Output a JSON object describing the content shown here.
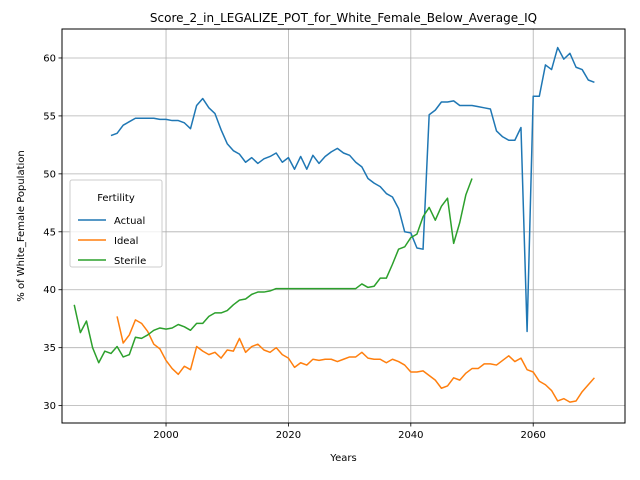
{
  "chart_data": {
    "type": "line",
    "title": "Score_2_in_LEGALIZE_POT_for_White_Female_Below_Average_IQ",
    "xlabel": "Years",
    "ylabel": "% of White_Female Population",
    "xlim": [
      1983,
      2075
    ],
    "ylim": [
      28.5,
      62.5
    ],
    "x_ticks": [
      2000,
      2020,
      2040,
      2060
    ],
    "y_ticks": [
      30,
      35,
      40,
      45,
      50,
      55,
      60
    ],
    "grid": true,
    "legend": {
      "title": "Fertility",
      "placement": "center-left"
    },
    "series": [
      {
        "name": "Actual",
        "color": "#1f77b4",
        "points": [
          [
            1991,
            53.3
          ],
          [
            1992,
            53.5
          ],
          [
            1993,
            54.2
          ],
          [
            1994,
            54.5
          ],
          [
            1995,
            54.8
          ],
          [
            1996,
            54.8
          ],
          [
            1997,
            54.8
          ],
          [
            1998,
            54.8
          ],
          [
            1999,
            54.7
          ],
          [
            2000,
            54.7
          ],
          [
            2001,
            54.6
          ],
          [
            2002,
            54.6
          ],
          [
            2003,
            54.4
          ],
          [
            2004,
            53.9
          ],
          [
            2005,
            55.9
          ],
          [
            2006,
            56.5
          ],
          [
            2007,
            55.7
          ],
          [
            2008,
            55.2
          ],
          [
            2009,
            53.8
          ],
          [
            2010,
            52.6
          ],
          [
            2011,
            52.0
          ],
          [
            2012,
            51.7
          ],
          [
            2013,
            51.0
          ],
          [
            2014,
            51.4
          ],
          [
            2015,
            50.9
          ],
          [
            2016,
            51.3
          ],
          [
            2017,
            51.5
          ],
          [
            2018,
            51.8
          ],
          [
            2019,
            51.0
          ],
          [
            2020,
            51.4
          ],
          [
            2021,
            50.4
          ],
          [
            2022,
            51.5
          ],
          [
            2023,
            50.4
          ],
          [
            2024,
            51.6
          ],
          [
            2025,
            50.9
          ],
          [
            2026,
            51.5
          ],
          [
            2027,
            51.9
          ],
          [
            2028,
            52.2
          ],
          [
            2029,
            51.8
          ],
          [
            2030,
            51.6
          ],
          [
            2031,
            51.0
          ],
          [
            2032,
            50.6
          ],
          [
            2033,
            49.6
          ],
          [
            2034,
            49.2
          ],
          [
            2035,
            48.9
          ],
          [
            2036,
            48.3
          ],
          [
            2037,
            48.0
          ],
          [
            2038,
            47.0
          ],
          [
            2039,
            45.0
          ],
          [
            2040,
            44.9
          ],
          [
            2041,
            43.6
          ],
          [
            2042,
            43.5
          ],
          [
            2043,
            55.1
          ],
          [
            2044,
            55.5
          ],
          [
            2045,
            56.2
          ],
          [
            2046,
            56.2
          ],
          [
            2047,
            56.3
          ],
          [
            2048,
            55.9
          ],
          [
            2049,
            55.9
          ],
          [
            2050,
            55.9
          ],
          [
            2051,
            55.8
          ],
          [
            2052,
            55.7
          ],
          [
            2053,
            55.6
          ],
          [
            2054,
            53.7
          ],
          [
            2055,
            53.2
          ],
          [
            2056,
            52.9
          ],
          [
            2057,
            52.9
          ],
          [
            2058,
            54.0
          ],
          [
            2059,
            36.4
          ],
          [
            2060,
            56.7
          ],
          [
            2061,
            56.7
          ],
          [
            2062,
            59.4
          ],
          [
            2063,
            59.0
          ],
          [
            2064,
            60.9
          ],
          [
            2065,
            59.9
          ],
          [
            2066,
            60.4
          ],
          [
            2067,
            59.2
          ],
          [
            2068,
            59.0
          ],
          [
            2069,
            58.1
          ],
          [
            2070,
            57.9
          ]
        ]
      },
      {
        "name": "Ideal",
        "color": "#ff7f0e",
        "points": [
          [
            1992,
            37.7
          ],
          [
            1993,
            35.4
          ],
          [
            1994,
            36.1
          ],
          [
            1995,
            37.4
          ],
          [
            1996,
            37.1
          ],
          [
            1997,
            36.4
          ],
          [
            1998,
            35.3
          ],
          [
            1999,
            34.9
          ],
          [
            2000,
            33.9
          ],
          [
            2001,
            33.2
          ],
          [
            2002,
            32.7
          ],
          [
            2003,
            33.4
          ],
          [
            2004,
            33.1
          ],
          [
            2005,
            35.1
          ],
          [
            2006,
            34.7
          ],
          [
            2007,
            34.4
          ],
          [
            2008,
            34.6
          ],
          [
            2009,
            34.1
          ],
          [
            2010,
            34.8
          ],
          [
            2011,
            34.7
          ],
          [
            2012,
            35.8
          ],
          [
            2013,
            34.6
          ],
          [
            2014,
            35.1
          ],
          [
            2015,
            35.3
          ],
          [
            2016,
            34.8
          ],
          [
            2017,
            34.6
          ],
          [
            2018,
            35.0
          ],
          [
            2019,
            34.4
          ],
          [
            2020,
            34.1
          ],
          [
            2021,
            33.3
          ],
          [
            2022,
            33.7
          ],
          [
            2023,
            33.5
          ],
          [
            2024,
            34.0
          ],
          [
            2025,
            33.9
          ],
          [
            2026,
            34.0
          ],
          [
            2027,
            34.0
          ],
          [
            2028,
            33.8
          ],
          [
            2029,
            34.0
          ],
          [
            2030,
            34.2
          ],
          [
            2031,
            34.2
          ],
          [
            2032,
            34.6
          ],
          [
            2033,
            34.1
          ],
          [
            2034,
            34.0
          ],
          [
            2035,
            34.0
          ],
          [
            2036,
            33.7
          ],
          [
            2037,
            34.0
          ],
          [
            2038,
            33.8
          ],
          [
            2039,
            33.5
          ],
          [
            2040,
            32.9
          ],
          [
            2041,
            32.9
          ],
          [
            2042,
            33.0
          ],
          [
            2043,
            32.6
          ],
          [
            2044,
            32.2
          ],
          [
            2045,
            31.5
          ],
          [
            2046,
            31.7
          ],
          [
            2047,
            32.4
          ],
          [
            2048,
            32.2
          ],
          [
            2049,
            32.8
          ],
          [
            2050,
            33.2
          ],
          [
            2051,
            33.2
          ],
          [
            2052,
            33.6
          ],
          [
            2053,
            33.6
          ],
          [
            2054,
            33.5
          ],
          [
            2055,
            33.9
          ],
          [
            2056,
            34.3
          ],
          [
            2057,
            33.8
          ],
          [
            2058,
            34.1
          ],
          [
            2059,
            33.1
          ],
          [
            2060,
            32.9
          ],
          [
            2061,
            32.1
          ],
          [
            2062,
            31.8
          ],
          [
            2063,
            31.3
          ],
          [
            2064,
            30.4
          ],
          [
            2065,
            30.6
          ],
          [
            2066,
            30.3
          ],
          [
            2067,
            30.4
          ],
          [
            2068,
            31.2
          ],
          [
            2069,
            31.8
          ],
          [
            2070,
            32.4
          ]
        ]
      },
      {
        "name": "Sterile",
        "color": "#2ca02c",
        "points": [
          [
            1985,
            38.7
          ],
          [
            1986,
            36.3
          ],
          [
            1987,
            37.3
          ],
          [
            1988,
            35.0
          ],
          [
            1989,
            33.7
          ],
          [
            1990,
            34.7
          ],
          [
            1991,
            34.5
          ],
          [
            1992,
            35.1
          ],
          [
            1993,
            34.2
          ],
          [
            1994,
            34.4
          ],
          [
            1995,
            35.9
          ],
          [
            1996,
            35.8
          ],
          [
            1997,
            36.1
          ],
          [
            1998,
            36.5
          ],
          [
            1999,
            36.7
          ],
          [
            2000,
            36.6
          ],
          [
            2001,
            36.7
          ],
          [
            2002,
            37.0
          ],
          [
            2003,
            36.8
          ],
          [
            2004,
            36.5
          ],
          [
            2005,
            37.1
          ],
          [
            2006,
            37.1
          ],
          [
            2007,
            37.7
          ],
          [
            2008,
            38.0
          ],
          [
            2009,
            38.0
          ],
          [
            2010,
            38.2
          ],
          [
            2011,
            38.7
          ],
          [
            2012,
            39.1
          ],
          [
            2013,
            39.2
          ],
          [
            2014,
            39.6
          ],
          [
            2015,
            39.8
          ],
          [
            2016,
            39.8
          ],
          [
            2017,
            39.9
          ],
          [
            2018,
            40.1
          ],
          [
            2019,
            40.1
          ],
          [
            2020,
            40.1
          ],
          [
            2021,
            40.1
          ],
          [
            2022,
            40.1
          ],
          [
            2023,
            40.1
          ],
          [
            2024,
            40.1
          ],
          [
            2025,
            40.1
          ],
          [
            2026,
            40.1
          ],
          [
            2027,
            40.1
          ],
          [
            2028,
            40.1
          ],
          [
            2029,
            40.1
          ],
          [
            2030,
            40.1
          ],
          [
            2031,
            40.1
          ],
          [
            2032,
            40.5
          ],
          [
            2033,
            40.2
          ],
          [
            2034,
            40.3
          ],
          [
            2035,
            41.0
          ],
          [
            2036,
            41.0
          ],
          [
            2037,
            42.2
          ],
          [
            2038,
            43.5
          ],
          [
            2039,
            43.7
          ],
          [
            2040,
            44.5
          ],
          [
            2041,
            44.8
          ],
          [
            2042,
            46.3
          ],
          [
            2043,
            47.1
          ],
          [
            2044,
            46.0
          ],
          [
            2045,
            47.2
          ],
          [
            2046,
            47.9
          ],
          [
            2047,
            44.0
          ],
          [
            2048,
            45.8
          ],
          [
            2049,
            48.2
          ],
          [
            2050,
            49.6
          ]
        ]
      }
    ]
  }
}
